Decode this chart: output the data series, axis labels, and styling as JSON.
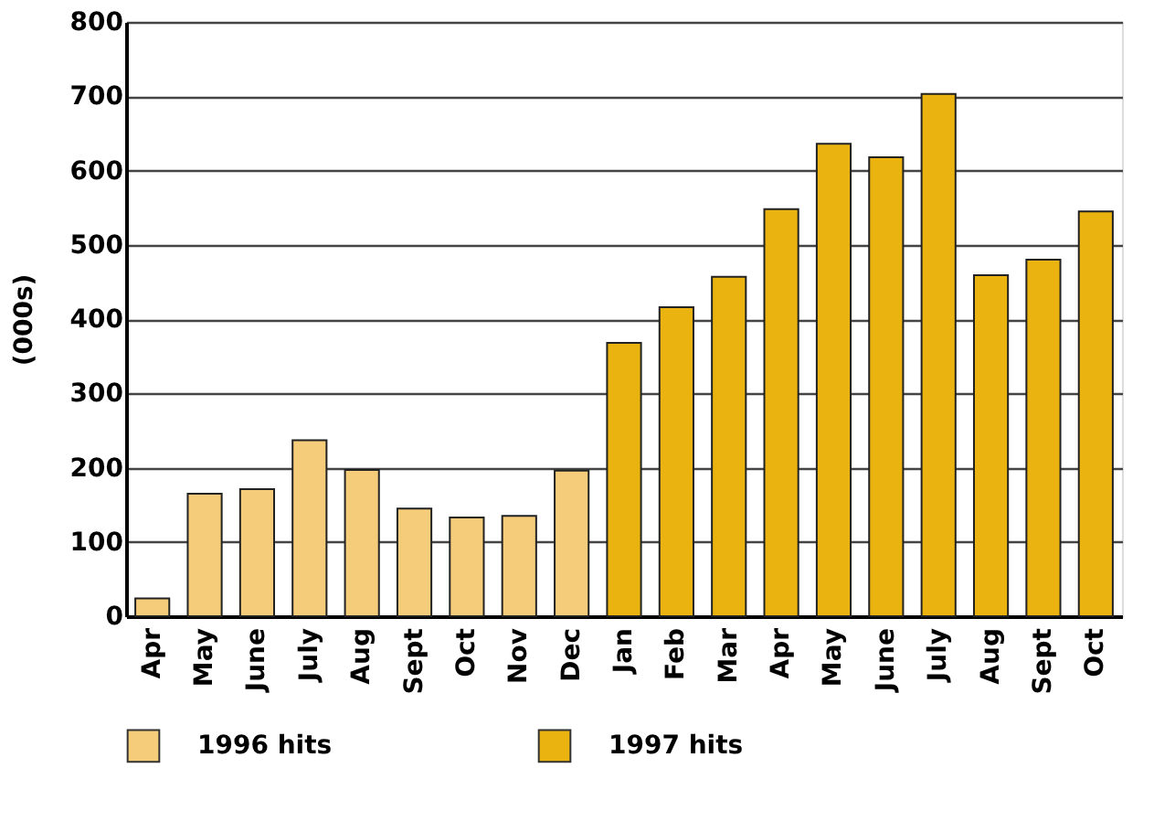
{
  "chart_data": {
    "type": "bar",
    "ylabel": "(000s)",
    "categories": [
      "Apr",
      "May",
      "June",
      "July",
      "Aug",
      "Sept",
      "Oct",
      "Nov",
      "Dec",
      "Jan",
      "Feb",
      "Mar",
      "Apr",
      "May",
      "June",
      "July",
      "Aug",
      "Sept",
      "Oct"
    ],
    "series": [
      {
        "name": "1996 hits",
        "color": "#f5cd7a",
        "values": [
          24,
          165,
          171,
          237,
          197,
          145,
          133,
          135,
          196,
          null,
          null,
          null,
          null,
          null,
          null,
          null,
          null,
          null,
          null
        ]
      },
      {
        "name": "1997 hits",
        "color": "#ebb30f",
        "values": [
          null,
          null,
          null,
          null,
          null,
          null,
          null,
          null,
          null,
          368,
          416,
          457,
          548,
          636,
          618,
          703,
          459,
          480,
          545
        ]
      }
    ],
    "ylim": [
      0,
      800
    ],
    "yticks": [
      0,
      100,
      200,
      300,
      400,
      500,
      600,
      700,
      800
    ],
    "grid": "y",
    "legend": "bottom"
  }
}
